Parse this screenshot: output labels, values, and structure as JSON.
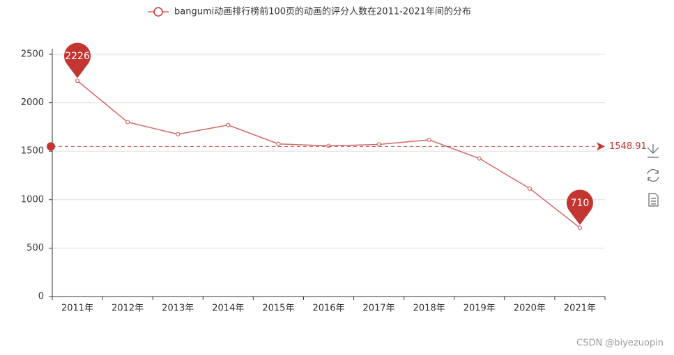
{
  "chart_data": {
    "type": "line",
    "categories": [
      "2011年",
      "2012年",
      "2013年",
      "2014年",
      "2015年",
      "2016年",
      "2017年",
      "2018年",
      "2019年",
      "2020年",
      "2021年"
    ],
    "series": [
      {
        "name": "bangumi动画排行榜前100页的动画的评分人数在2011-2021年间的分布",
        "color": "#c23531",
        "values": [
          2226,
          1800,
          1675,
          1770,
          1575,
          1555,
          1570,
          1617,
          1425,
          1115,
          710
        ]
      }
    ],
    "mark_line": {
      "value": 1548.91
    },
    "ylim": [
      0,
      2500
    ],
    "yticks": [
      0,
      500,
      1000,
      1500,
      2000,
      2500
    ],
    "grid": true,
    "watermark": "CSDN @biyezuopin"
  }
}
